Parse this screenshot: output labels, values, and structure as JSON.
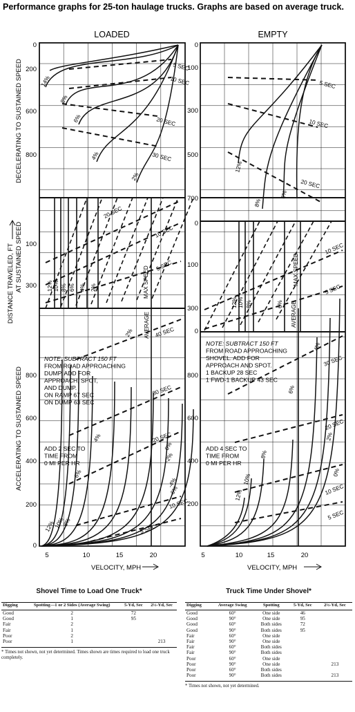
{
  "title": "Performance graphs for 25-ton haulage trucks. Graphs are based on average truck.",
  "chart_data": [
    {
      "type": "line",
      "title": "LOADED",
      "xlabel": "VELOCITY, MPH",
      "xticks": [
        "5",
        "10",
        "15",
        "20"
      ],
      "ylabel_top": "DECELERATING TO SUSTAINED SPEED",
      "ylabel_middle": "AT SUSTAINED SPEED",
      "ylabel_bottom": "ACCELERATING TO SUSTAINED SPEED",
      "ylabel_common": "DISTANCE TRAVELED, FT",
      "decel_yticks": [
        "0",
        "200",
        "600",
        "800"
      ],
      "sustained_yticks": [
        "100",
        "300"
      ],
      "accel_yticks": [
        "0",
        "200",
        "400",
        "600",
        "800"
      ],
      "decel_grade_labels": [
        "14%",
        "8%",
        "6%",
        "4%",
        "2%"
      ],
      "decel_time_labels": [
        "5 SEC",
        "10 SEC",
        "20 SEC",
        "30 SEC"
      ],
      "sustained_grade_labels": [
        "12%",
        "10%",
        "8%",
        "6%",
        "4%",
        "2%"
      ],
      "sustained_time_labels": [
        "5 SEC",
        "10 SEC",
        "20 SEC"
      ],
      "max_speed_label": "MAX SPEED",
      "accel_grade_labels": [
        "12%",
        "10%",
        "8%",
        "6%",
        "4%",
        "2%",
        "0%",
        "-2%",
        "-4%",
        "-6%"
      ],
      "accel_time_labels": [
        "5 SEC",
        "10 SEC",
        "20 SEC",
        "30 SEC",
        "40 SEC"
      ],
      "average_label": "AVERAGE",
      "note": [
        "NOTE: SUBTRACT 150 FT",
        "FROM ROAD APPROACHING",
        "DUMP. ADD FOR",
        "APPROACH, SPOT,",
        "AND DUMP.",
        "ON RAMP  67 SEC",
        "ON DUMP  63 SEC"
      ],
      "note2": [
        "ADD 2 SEC TO",
        "TIME FROM",
        "0 MI PER HR"
      ]
    },
    {
      "type": "line",
      "title": "EMPTY",
      "xlabel": "VELOCITY, MPH",
      "xticks": [
        "5",
        "10",
        "15",
        "20"
      ],
      "decel_yticks": [
        "0",
        "100",
        "300",
        "500",
        "700"
      ],
      "sustained_yticks": [
        "100",
        "300"
      ],
      "accel_yticks": [
        "0",
        "200",
        "400",
        "600",
        "800"
      ],
      "decel_grade_labels": [
        "12%",
        "8%",
        "6%"
      ],
      "decel_time_labels": [
        "5 SEC",
        "10 SEC",
        "20 SEC"
      ],
      "sustained_grade_labels": [
        "12%",
        "10%",
        "8%",
        "6%"
      ],
      "sustained_time_labels": [
        "5 SEC",
        "10 SEC"
      ],
      "max_speed_label": "MAX SPEED",
      "accel_grade_labels": [
        "12%",
        "10%",
        "8%",
        "6%",
        "4%",
        "2%",
        "0%"
      ],
      "accel_time_labels": [
        "5 SEC",
        "10 SEC",
        "20 SEC",
        "30 SEC"
      ],
      "average_label": "AVERAGE",
      "note": [
        "NOTE: SUBTRACT 150 FT",
        "FROM ROAD APPROACHING",
        "SHOVEL. ADD FOR",
        "APPROACH AND SPOT.",
        "1 BACKUP          28 SEC",
        "1 FWD-1 BACKUP 43 SEC"
      ],
      "note2": [
        "ADD 4 SEC TO",
        "TIME FROM",
        "0 MI PER HR"
      ]
    }
  ],
  "table_left": {
    "title": "Shovel Time to Load One Truck*",
    "headers": [
      "Digging",
      "Spotting—1 or 2 Sides (Average Swing)",
      "5-Yd, Sec",
      "2½-Yd, Sec"
    ],
    "rows": [
      [
        "Good",
        "2",
        "72",
        ""
      ],
      [
        "Good",
        "1",
        "95",
        ""
      ],
      [
        "Fair",
        "2",
        "",
        ""
      ],
      [
        "Fair",
        "1",
        "",
        ""
      ],
      [
        "Poor",
        "2",
        "",
        ""
      ],
      [
        "Poor",
        "1",
        "",
        "213"
      ]
    ],
    "footnote": "* Times not shown, not yet determined. Times shown are times required to load one truck completely."
  },
  "table_right": {
    "title": "Truck Time Under Shovel*",
    "headers": [
      "Digging",
      "Average Swing",
      "Spotting",
      "5-Yd, Sec",
      "2½-Yd, Sec"
    ],
    "rows": [
      [
        "Good",
        "60°",
        "One side",
        "46",
        ""
      ],
      [
        "Good",
        "90°",
        "One side",
        "95",
        ""
      ],
      [
        "Good",
        "60°",
        "Both sides",
        "72",
        ""
      ],
      [
        "Good",
        "90°",
        "Both sides",
        "95",
        ""
      ],
      [
        "Fair",
        "60°",
        "One side",
        "",
        ""
      ],
      [
        "Fair",
        "90°",
        "One side",
        "",
        ""
      ],
      [
        "Fair",
        "60°",
        "Both sides",
        "",
        ""
      ],
      [
        "Fair",
        "90°",
        "Both sides",
        "",
        ""
      ],
      [
        "Poor",
        "60°",
        "One side",
        "",
        ""
      ],
      [
        "Poor",
        "90°",
        "One side",
        "",
        "213"
      ],
      [
        "Poor",
        "60°",
        "Both sides",
        "",
        ""
      ],
      [
        "Poor",
        "90°",
        "Both sides",
        "",
        "213"
      ]
    ],
    "footnote": "* Times not shown, not yet determined."
  }
}
